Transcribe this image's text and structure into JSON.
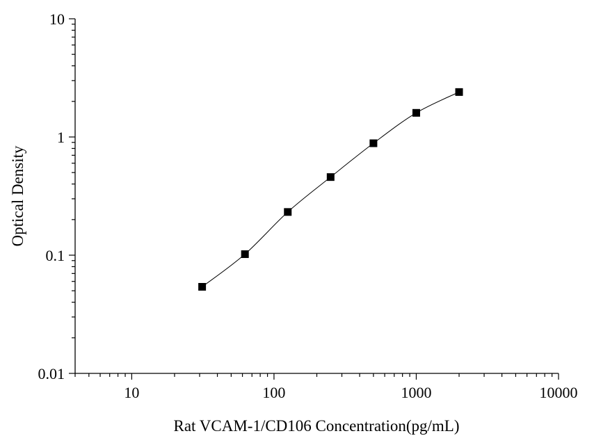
{
  "chart_data": {
    "type": "scatter",
    "title": "",
    "xlabel": "Rat VCAM-1/CD106 Concentration(pg/mL)",
    "ylabel": "Optical Density",
    "xscale": "log",
    "yscale": "log",
    "xlim": [
      4,
      10000
    ],
    "ylim": [
      0.01,
      10
    ],
    "x_ticks": [
      10,
      100,
      1000,
      10000
    ],
    "x_tick_labels": [
      "10",
      "100",
      "1000",
      "10000"
    ],
    "y_ticks": [
      0.01,
      0.1,
      1,
      10
    ],
    "y_tick_labels": [
      "0.01",
      "0.1",
      "1",
      "10"
    ],
    "grid": false,
    "legend": "none",
    "series": [
      {
        "x": [
          31.25,
          62.5,
          125,
          250,
          500,
          1000,
          2000
        ],
        "y": [
          0.054,
          0.102,
          0.232,
          0.458,
          0.885,
          1.6,
          2.4
        ],
        "marker": "square",
        "color": "#000000",
        "line": "smooth"
      }
    ]
  }
}
